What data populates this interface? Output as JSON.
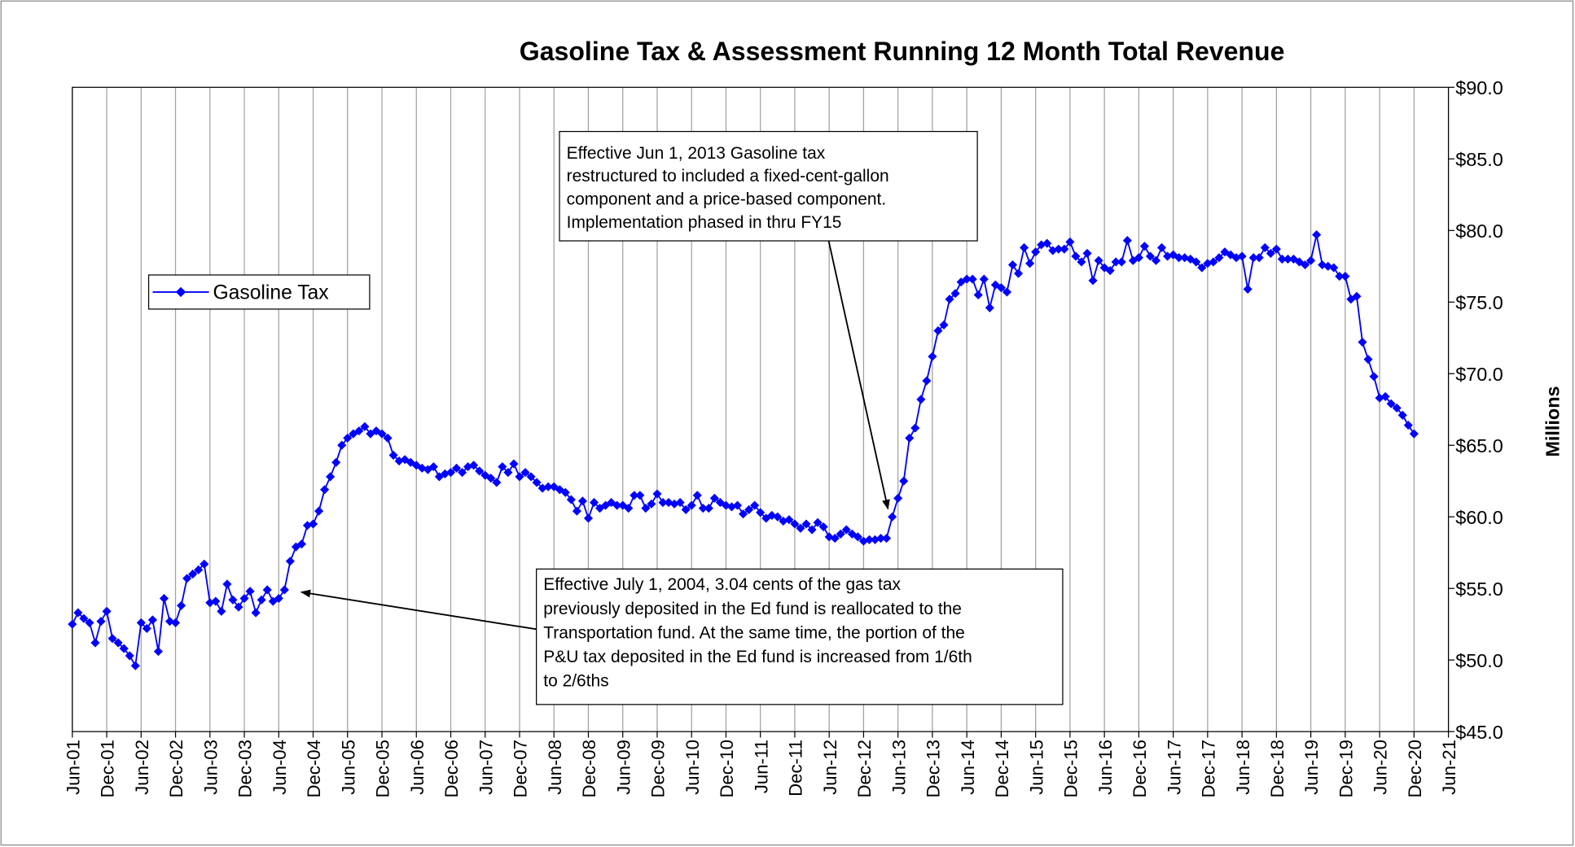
{
  "chart_data": {
    "type": "line",
    "title": "Gasoline Tax & Assessment  Running 12 Month Total Revenue",
    "y_label": "Millions",
    "grid": "x",
    "legend": "upper left",
    "categories": [
      "Jun-01",
      null,
      null,
      null,
      null,
      null,
      "Dec-01",
      null,
      null,
      null,
      null,
      null,
      "Jun-02",
      null,
      null,
      null,
      null,
      null,
      "Dec-02",
      null,
      null,
      null,
      null,
      null,
      "Jun-03",
      null,
      null,
      null,
      null,
      null,
      "Dec-03",
      null,
      null,
      null,
      null,
      null,
      "Jun-04",
      null,
      null,
      null,
      null,
      null,
      "Dec-04",
      null,
      null,
      null,
      null,
      null,
      "Jun-05",
      null,
      null,
      null,
      null,
      null,
      "Dec-05",
      null,
      null,
      null,
      null,
      null,
      "Jun-06",
      null,
      null,
      null,
      null,
      null,
      "Dec-06",
      null,
      null,
      null,
      null,
      null,
      "Jun-07",
      null,
      null,
      null,
      null,
      null,
      "Dec-07",
      null,
      null,
      null,
      null,
      null,
      "Jun-08",
      null,
      null,
      null,
      null,
      null,
      "Dec-08",
      null,
      null,
      null,
      null,
      null,
      "Jun-09",
      null,
      null,
      null,
      null,
      null,
      "Dec-09",
      null,
      null,
      null,
      null,
      null,
      "Jun-10",
      null,
      null,
      null,
      null,
      null,
      "Dec-10",
      null,
      null,
      null,
      null,
      null,
      "Jun-11",
      null,
      null,
      null,
      null,
      null,
      "Dec-11",
      null,
      null,
      null,
      null,
      null,
      "Jun-12",
      null,
      null,
      null,
      null,
      null,
      "Dec-12",
      null,
      null,
      null,
      null,
      null,
      "Jun-13",
      null,
      null,
      null,
      null,
      null,
      "Dec-13",
      null,
      null,
      null,
      null,
      null,
      "Jun-14",
      null,
      null,
      null,
      null,
      null,
      "Dec-14",
      null,
      null,
      null,
      null,
      null,
      "Jun-15",
      null,
      null,
      null,
      null,
      null,
      "Dec-15",
      null,
      null,
      null,
      null,
      null,
      "Jun-16",
      null,
      null,
      null,
      null,
      null,
      "Dec-16",
      null,
      null,
      null,
      null,
      null,
      "Jun-17",
      null,
      null,
      null,
      null,
      null,
      "Dec-17",
      null,
      null,
      null,
      null,
      null,
      "Jun-18",
      null,
      null,
      null,
      null,
      null,
      "Dec-18",
      null,
      null,
      null,
      null,
      null,
      "Jun-19",
      null,
      null,
      null,
      null,
      null,
      "Dec-19",
      null,
      null,
      null,
      null,
      null,
      "Jun-20",
      null,
      null,
      null,
      null,
      null,
      "Dec-20",
      null,
      null,
      null,
      null,
      null,
      "Jun-21"
    ],
    "series": [
      {
        "name": "Gasoline Tax",
        "color": "#0000ff",
        "values": [
          52.5,
          53.3,
          52.9,
          52.6,
          51.2,
          52.7,
          53.4,
          51.5,
          51.2,
          50.8,
          50.3,
          49.6,
          52.6,
          52.2,
          52.8,
          50.6,
          54.3,
          52.7,
          52.6,
          53.8,
          55.7,
          56.0,
          56.3,
          56.7,
          54.0,
          54.1,
          53.4,
          55.3,
          54.2,
          53.7,
          54.3,
          54.8,
          53.3,
          54.2,
          54.9,
          54.1,
          54.3,
          54.9,
          56.9,
          57.9,
          58.1,
          59.4,
          59.5,
          60.4,
          61.9,
          62.8,
          63.8,
          65.0,
          65.5,
          65.8,
          66.0,
          66.3,
          65.8,
          66.0,
          65.8,
          65.5,
          64.3,
          63.9,
          64.0,
          63.8,
          63.6,
          63.4,
          63.3,
          63.5,
          62.8,
          63.0,
          63.1,
          63.4,
          63.1,
          63.5,
          63.6,
          63.2,
          62.9,
          62.7,
          62.4,
          63.5,
          63.1,
          63.7,
          62.8,
          63.1,
          62.8,
          62.4,
          62.0,
          62.1,
          62.1,
          61.9,
          61.7,
          61.2,
          60.4,
          61.1,
          59.9,
          61.0,
          60.6,
          60.8,
          61.0,
          60.8,
          60.8,
          60.6,
          61.5,
          61.5,
          60.6,
          60.9,
          61.6,
          61.0,
          61.0,
          60.9,
          61.0,
          60.5,
          60.8,
          61.5,
          60.6,
          60.6,
          61.3,
          61.0,
          60.8,
          60.7,
          60.8,
          60.2,
          60.5,
          60.8,
          60.3,
          59.9,
          60.1,
          60.0,
          59.7,
          59.8,
          59.5,
          59.2,
          59.5,
          59.1,
          59.6,
          59.3,
          58.6,
          58.5,
          58.8,
          59.1,
          58.8,
          58.6,
          58.3,
          58.4,
          58.4,
          58.5,
          58.5,
          60.0,
          61.3,
          62.5,
          65.5,
          66.2,
          68.2,
          69.5,
          71.2,
          73.0,
          73.4,
          75.2,
          75.6,
          76.4,
          76.6,
          76.6,
          75.5,
          76.6,
          74.6,
          76.2,
          76.0,
          75.7,
          77.6,
          77.0,
          78.8,
          77.7,
          78.5,
          79.0,
          79.1,
          78.6,
          78.7,
          78.7,
          79.2,
          78.2,
          77.8,
          78.4,
          76.5,
          77.9,
          77.4,
          77.2,
          77.8,
          77.8,
          79.3,
          77.9,
          78.1,
          78.9,
          78.2,
          77.9,
          78.8,
          78.2,
          78.3,
          78.1,
          78.1,
          78.0,
          77.8,
          77.4,
          77.7,
          77.8,
          78.1,
          78.5,
          78.3,
          78.1,
          78.2,
          75.9,
          78.1,
          78.1,
          78.8,
          78.4,
          78.7,
          78.0,
          78.0,
          78.0,
          77.8,
          77.6,
          77.9,
          79.7,
          77.6,
          77.5,
          77.4,
          76.8,
          76.8,
          75.2,
          75.4,
          72.2,
          71.0,
          69.8,
          68.3,
          68.4,
          67.9,
          67.6,
          67.1,
          66.4,
          65.8,
          null,
          null,
          null,
          null,
          null,
          null
        ]
      }
    ],
    "ylim": [
      45,
      90
    ],
    "yticks": [
      {
        "value": 45,
        "label": "$45.0"
      },
      {
        "value": 50,
        "label": "$50.0"
      },
      {
        "value": 55,
        "label": "$55.0"
      },
      {
        "value": 60,
        "label": "$60.0"
      },
      {
        "value": 65,
        "label": "$65.0"
      },
      {
        "value": 70,
        "label": "$70.0"
      },
      {
        "value": 75,
        "label": "$75.0"
      },
      {
        "value": 80,
        "label": "$80.0"
      },
      {
        "value": 85,
        "label": "$85.0"
      },
      {
        "value": 90,
        "label": "$90.0"
      }
    ],
    "annotations": [
      {
        "lines": [
          "Effective Jun 1, 2013  Gasoline tax",
          "restructured to included a fixed-cent-gallon",
          "component and a price-based component.",
          "Implementation phased in thru FY15"
        ]
      },
      {
        "lines": [
          "Effective July 1, 2004, 3.04 cents of the gas tax",
          "previously deposited in the Ed fund is reallocated to the",
          "Transportation fund.  At the same time, the portion of the",
          "P&U tax deposited in the Ed fund is increased from 1/6th",
          "to 2/6ths"
        ]
      }
    ]
  }
}
